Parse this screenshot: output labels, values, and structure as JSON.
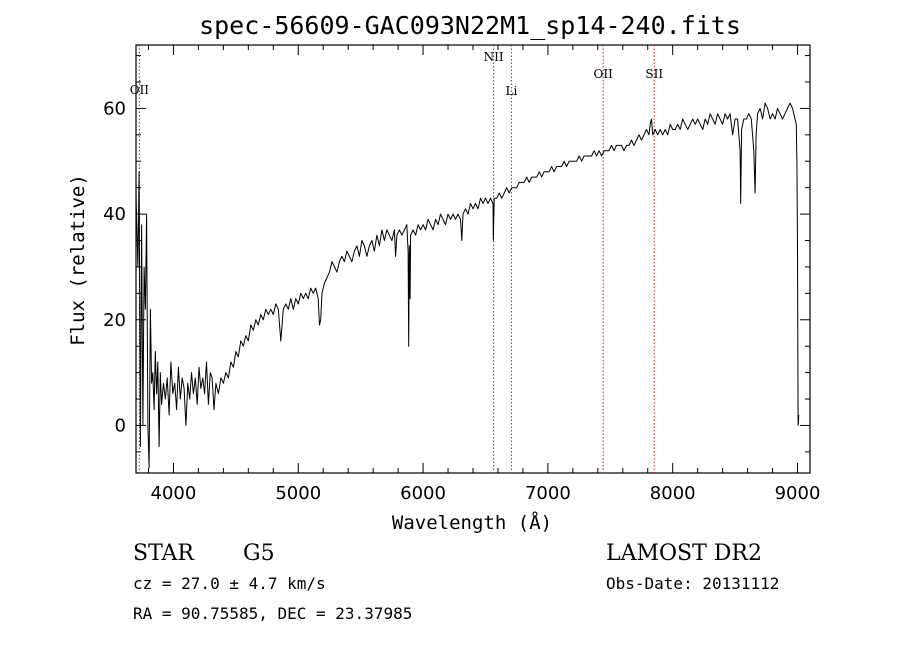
{
  "chart_data": {
    "type": "line",
    "title": "spec-56609-GAC093N22M1_sp14-240.fits",
    "xlabel": "Wavelength (Å)",
    "ylabel": "Flux (relative)",
    "xlim": [
      3700,
      9100
    ],
    "ylim": [
      -9,
      72
    ],
    "x_ticks": [
      4000,
      5000,
      6000,
      7000,
      8000,
      9000
    ],
    "y_ticks": [
      0,
      20,
      40,
      60
    ],
    "grid": false,
    "series": [
      {
        "points": [
          [
            3700,
            44
          ],
          [
            3715,
            30
          ],
          [
            3725,
            48
          ],
          [
            3735,
            -4
          ],
          [
            3745,
            38
          ],
          [
            3755,
            0
          ],
          [
            3765,
            30
          ],
          [
            3775,
            22
          ],
          [
            3785,
            40
          ],
          [
            3795,
            0
          ],
          [
            3805,
            -8
          ],
          [
            3815,
            22
          ],
          [
            3825,
            8
          ],
          [
            3835,
            10
          ],
          [
            3845,
            3
          ],
          [
            3855,
            14
          ],
          [
            3865,
            6
          ],
          [
            3875,
            12
          ],
          [
            3885,
            -4
          ],
          [
            3895,
            10
          ],
          [
            3905,
            4
          ],
          [
            3920,
            8
          ],
          [
            3935,
            5
          ],
          [
            3950,
            9
          ],
          [
            3965,
            2
          ],
          [
            3980,
            12
          ],
          [
            3995,
            6
          ],
          [
            4010,
            8
          ],
          [
            4025,
            3
          ],
          [
            4040,
            11
          ],
          [
            4055,
            5
          ],
          [
            4070,
            9
          ],
          [
            4085,
            7
          ],
          [
            4100,
            0
          ],
          [
            4115,
            8
          ],
          [
            4130,
            5
          ],
          [
            4145,
            10
          ],
          [
            4160,
            6
          ],
          [
            4175,
            9
          ],
          [
            4190,
            4
          ],
          [
            4205,
            11
          ],
          [
            4220,
            7
          ],
          [
            4235,
            9
          ],
          [
            4250,
            6
          ],
          [
            4265,
            12
          ],
          [
            4280,
            4
          ],
          [
            4295,
            10
          ],
          [
            4310,
            9
          ],
          [
            4325,
            3
          ],
          [
            4340,
            8
          ],
          [
            4360,
            6
          ],
          [
            4380,
            9
          ],
          [
            4400,
            8
          ],
          [
            4420,
            10
          ],
          [
            4440,
            9
          ],
          [
            4460,
            12
          ],
          [
            4480,
            11
          ],
          [
            4500,
            14
          ],
          [
            4520,
            13
          ],
          [
            4540,
            16
          ],
          [
            4560,
            15
          ],
          [
            4580,
            17
          ],
          [
            4600,
            16
          ],
          [
            4620,
            19
          ],
          [
            4640,
            18
          ],
          [
            4660,
            20
          ],
          [
            4680,
            19
          ],
          [
            4700,
            21
          ],
          [
            4720,
            20
          ],
          [
            4740,
            22
          ],
          [
            4760,
            21
          ],
          [
            4780,
            22
          ],
          [
            4800,
            21
          ],
          [
            4820,
            23
          ],
          [
            4840,
            22
          ],
          [
            4860,
            16
          ],
          [
            4880,
            22
          ],
          [
            4900,
            23
          ],
          [
            4920,
            22
          ],
          [
            4940,
            24
          ],
          [
            4960,
            22
          ],
          [
            4980,
            24
          ],
          [
            5000,
            23
          ],
          [
            5020,
            25
          ],
          [
            5040,
            24
          ],
          [
            5060,
            25
          ],
          [
            5080,
            24
          ],
          [
            5100,
            26
          ],
          [
            5120,
            25
          ],
          [
            5140,
            26
          ],
          [
            5160,
            24
          ],
          [
            5170,
            19
          ],
          [
            5180,
            20
          ],
          [
            5190,
            25
          ],
          [
            5210,
            27
          ],
          [
            5230,
            28
          ],
          [
            5250,
            29
          ],
          [
            5270,
            31
          ],
          [
            5290,
            30
          ],
          [
            5310,
            29
          ],
          [
            5330,
            31
          ],
          [
            5350,
            32
          ],
          [
            5370,
            31
          ],
          [
            5390,
            33
          ],
          [
            5410,
            32
          ],
          [
            5430,
            31
          ],
          [
            5450,
            33
          ],
          [
            5470,
            34
          ],
          [
            5490,
            32
          ],
          [
            5510,
            35
          ],
          [
            5530,
            34
          ],
          [
            5550,
            32
          ],
          [
            5570,
            34
          ],
          [
            5590,
            35
          ],
          [
            5610,
            33
          ],
          [
            5630,
            36
          ],
          [
            5650,
            34
          ],
          [
            5670,
            37
          ],
          [
            5690,
            35
          ],
          [
            5710,
            37
          ],
          [
            5730,
            36
          ],
          [
            5750,
            35
          ],
          [
            5770,
            37
          ],
          [
            5780,
            32
          ],
          [
            5790,
            36
          ],
          [
            5810,
            37
          ],
          [
            5830,
            36
          ],
          [
            5850,
            37
          ],
          [
            5870,
            38
          ],
          [
            5880,
            33
          ],
          [
            5885,
            15
          ],
          [
            5890,
            34
          ],
          [
            5896,
            24
          ],
          [
            5900,
            36
          ],
          [
            5920,
            37
          ],
          [
            5940,
            36
          ],
          [
            5960,
            38
          ],
          [
            5980,
            37
          ],
          [
            6000,
            38
          ],
          [
            6020,
            37
          ],
          [
            6040,
            39
          ],
          [
            6060,
            38
          ],
          [
            6080,
            37
          ],
          [
            6100,
            39
          ],
          [
            6120,
            38
          ],
          [
            6140,
            40
          ],
          [
            6160,
            39
          ],
          [
            6180,
            38
          ],
          [
            6200,
            40
          ],
          [
            6220,
            39
          ],
          [
            6240,
            40
          ],
          [
            6260,
            39
          ],
          [
            6280,
            40
          ],
          [
            6300,
            39
          ],
          [
            6310,
            35
          ],
          [
            6320,
            40
          ],
          [
            6340,
            41
          ],
          [
            6360,
            40
          ],
          [
            6380,
            42
          ],
          [
            6400,
            41
          ],
          [
            6420,
            42
          ],
          [
            6440,
            41
          ],
          [
            6460,
            43
          ],
          [
            6480,
            42
          ],
          [
            6500,
            43
          ],
          [
            6520,
            42
          ],
          [
            6540,
            43
          ],
          [
            6560,
            42
          ],
          [
            6563,
            35
          ],
          [
            6570,
            43
          ],
          [
            6590,
            43
          ],
          [
            6610,
            44
          ],
          [
            6630,
            43
          ],
          [
            6650,
            44
          ],
          [
            6670,
            45
          ],
          [
            6690,
            44
          ],
          [
            6710,
            45
          ],
          [
            6730,
            45
          ],
          [
            6750,
            45
          ],
          [
            6770,
            46
          ],
          [
            6790,
            46
          ],
          [
            6810,
            46
          ],
          [
            6830,
            47
          ],
          [
            6850,
            46
          ],
          [
            6870,
            47
          ],
          [
            6890,
            47
          ],
          [
            6910,
            47
          ],
          [
            6930,
            48
          ],
          [
            6950,
            47
          ],
          [
            6970,
            48
          ],
          [
            6990,
            48
          ],
          [
            7010,
            48
          ],
          [
            7030,
            49
          ],
          [
            7050,
            48
          ],
          [
            7070,
            49
          ],
          [
            7090,
            49
          ],
          [
            7110,
            49
          ],
          [
            7130,
            50
          ],
          [
            7150,
            49
          ],
          [
            7170,
            50
          ],
          [
            7190,
            50
          ],
          [
            7210,
            50
          ],
          [
            7230,
            50
          ],
          [
            7250,
            51
          ],
          [
            7270,
            50
          ],
          [
            7290,
            51
          ],
          [
            7310,
            51
          ],
          [
            7330,
            51
          ],
          [
            7350,
            51
          ],
          [
            7370,
            52
          ],
          [
            7390,
            51
          ],
          [
            7410,
            52
          ],
          [
            7430,
            51
          ],
          [
            7450,
            52
          ],
          [
            7470,
            52
          ],
          [
            7490,
            52
          ],
          [
            7510,
            53
          ],
          [
            7530,
            52
          ],
          [
            7550,
            53
          ],
          [
            7570,
            53
          ],
          [
            7590,
            53
          ],
          [
            7610,
            52
          ],
          [
            7630,
            53
          ],
          [
            7650,
            53
          ],
          [
            7670,
            54
          ],
          [
            7690,
            53
          ],
          [
            7710,
            54
          ],
          [
            7730,
            55
          ],
          [
            7750,
            54
          ],
          [
            7770,
            55
          ],
          [
            7790,
            56
          ],
          [
            7810,
            55
          ],
          [
            7820,
            57
          ],
          [
            7830,
            58
          ],
          [
            7840,
            55
          ],
          [
            7860,
            56
          ],
          [
            7880,
            55
          ],
          [
            7900,
            56
          ],
          [
            7920,
            55
          ],
          [
            7940,
            56
          ],
          [
            7960,
            55
          ],
          [
            7980,
            57
          ],
          [
            8000,
            56
          ],
          [
            8020,
            56
          ],
          [
            8040,
            57
          ],
          [
            8060,
            56
          ],
          [
            8080,
            58
          ],
          [
            8100,
            57
          ],
          [
            8120,
            56
          ],
          [
            8140,
            57
          ],
          [
            8160,
            58
          ],
          [
            8180,
            57
          ],
          [
            8200,
            58
          ],
          [
            8220,
            57
          ],
          [
            8240,
            56
          ],
          [
            8260,
            58
          ],
          [
            8280,
            57
          ],
          [
            8300,
            59
          ],
          [
            8320,
            58
          ],
          [
            8340,
            57
          ],
          [
            8360,
            59
          ],
          [
            8380,
            58
          ],
          [
            8400,
            57
          ],
          [
            8420,
            59
          ],
          [
            8440,
            58
          ],
          [
            8460,
            59
          ],
          [
            8480,
            55
          ],
          [
            8500,
            58
          ],
          [
            8520,
            58
          ],
          [
            8540,
            52
          ],
          [
            8545,
            42
          ],
          [
            8552,
            56
          ],
          [
            8570,
            58
          ],
          [
            8590,
            58
          ],
          [
            8610,
            59
          ],
          [
            8630,
            58
          ],
          [
            8650,
            52
          ],
          [
            8660,
            44
          ],
          [
            8668,
            55
          ],
          [
            8680,
            59
          ],
          [
            8700,
            60
          ],
          [
            8720,
            58
          ],
          [
            8740,
            61
          ],
          [
            8760,
            60
          ],
          [
            8780,
            58
          ],
          [
            8800,
            59
          ],
          [
            8820,
            58
          ],
          [
            8840,
            60
          ],
          [
            8860,
            59
          ],
          [
            8880,
            58
          ],
          [
            8900,
            59
          ],
          [
            8920,
            60
          ],
          [
            8940,
            61
          ],
          [
            8960,
            60
          ],
          [
            8980,
            58
          ],
          [
            8990,
            57
          ],
          [
            8995,
            50
          ],
          [
            9000,
            34
          ],
          [
            9005,
            0
          ],
          [
            9010,
            2
          ]
        ]
      }
    ],
    "lines": [
      {
        "name": "OII",
        "x": 3727
      },
      {
        "name": "NII",
        "x": 6565
      },
      {
        "name": "Li",
        "x": 6708
      },
      {
        "name": "OII",
        "x": 7443
      },
      {
        "name": "SII",
        "x": 7852
      }
    ],
    "line_color": "#c81e1e",
    "spectrum_color": "#000000"
  },
  "info": {
    "class": "STAR",
    "subclass": "G5",
    "survey": "LAMOST DR2",
    "cz": "cz = 27.0 ± 4.7 km/s",
    "obs_date": "Obs-Date: 20131112",
    "radec": "RA =  90.75585, DEC =  23.37985"
  }
}
